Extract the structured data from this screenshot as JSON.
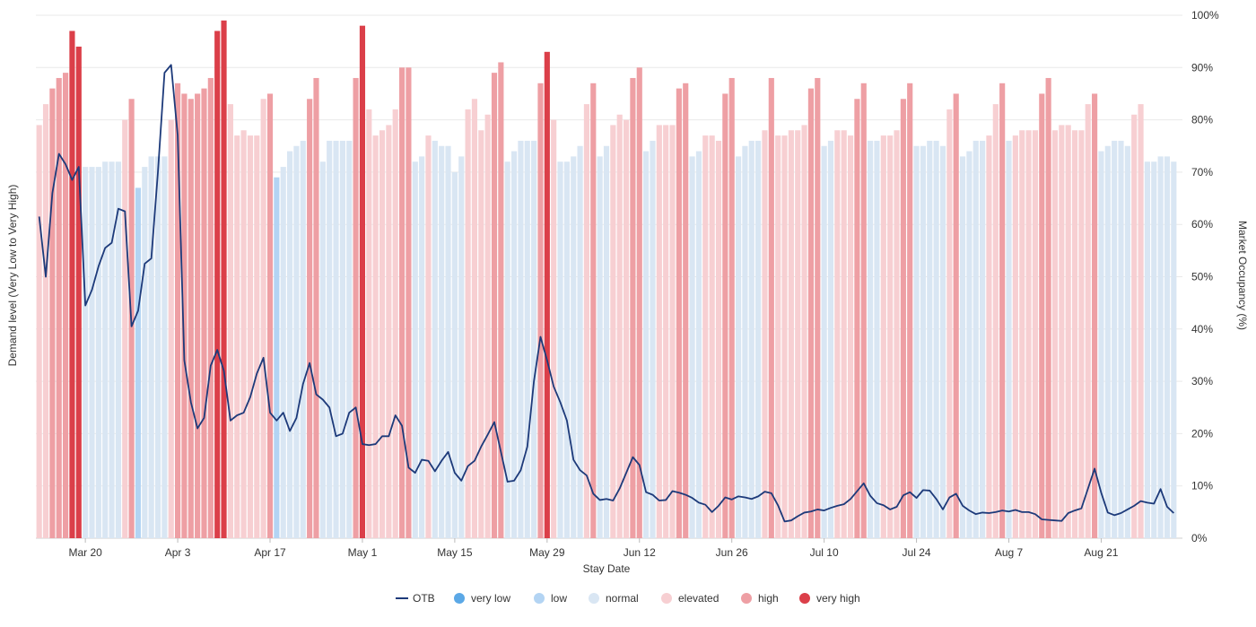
{
  "chart_data": {
    "type": "bar",
    "title": "",
    "xlabel": "Stay Date",
    "ylabel_left": "Demand level (Very Low to Very High)",
    "ylabel_right": "Market Occupancy (%)",
    "ylim": [
      0,
      100
    ],
    "y_ticks": [
      "0%",
      "10%",
      "20%",
      "30%",
      "40%",
      "50%",
      "60%",
      "70%",
      "80%",
      "90%",
      "100%"
    ],
    "x_ticks": [
      {
        "label": "Mar 20",
        "day": 7
      },
      {
        "label": "Apr 3",
        "day": 21
      },
      {
        "label": "Apr 17",
        "day": 35
      },
      {
        "label": "May 1",
        "day": 49
      },
      {
        "label": "May 15",
        "day": 63
      },
      {
        "label": "May 29",
        "day": 77
      },
      {
        "label": "Jun 12",
        "day": 91
      },
      {
        "label": "Jun 26",
        "day": 105
      },
      {
        "label": "Jul 10",
        "day": 119
      },
      {
        "label": "Jul 24",
        "day": 133
      },
      {
        "label": "Aug 7",
        "day": 147
      },
      {
        "label": "Aug 21",
        "day": 161
      }
    ],
    "start_date": "Mar 13",
    "levels": [
      "very low",
      "low",
      "normal",
      "elevated",
      "high",
      "very high"
    ],
    "level_colors": {
      "very low": "#5ba8e6",
      "low": "#b3d4f3",
      "normal": "#d9e6f3",
      "elevated": "#f7cfd2",
      "high": "#ee9fa4",
      "very high": "#db3f49"
    },
    "line_color": "#1d3a7a",
    "legend": [
      "OTB",
      "very low",
      "low",
      "normal",
      "elevated",
      "high",
      "very high"
    ],
    "series": [
      {
        "name": "Market Occupancy (bars)",
        "values": [
          79,
          83,
          86,
          88,
          89,
          97,
          94,
          71,
          71,
          71,
          72,
          72,
          72,
          80,
          84,
          67,
          71,
          73,
          73,
          73,
          80,
          87,
          85,
          84,
          85,
          86,
          88,
          97,
          99,
          83,
          77,
          78,
          77,
          77,
          84,
          85,
          69,
          71,
          74,
          75,
          76,
          84,
          88,
          72,
          76,
          76,
          76,
          76,
          88,
          98,
          82,
          77,
          78,
          79,
          82,
          90,
          90,
          72,
          73,
          77,
          76,
          75,
          75,
          70,
          73,
          82,
          84,
          78,
          81,
          89,
          91,
          72,
          74,
          76,
          76,
          76,
          87,
          93,
          80,
          72,
          72,
          73,
          75,
          83,
          87,
          73,
          75,
          79,
          81,
          80,
          88,
          90,
          74,
          76,
          79,
          79,
          79,
          86,
          87,
          73,
          74,
          77,
          77,
          76,
          85,
          88,
          73,
          75,
          76,
          76,
          78,
          88,
          77,
          77,
          78,
          78,
          79,
          86,
          88,
          75,
          76,
          78,
          78,
          77,
          84,
          87,
          76,
          76,
          77,
          77,
          78,
          84,
          87,
          75,
          75,
          76,
          76,
          75,
          82,
          85,
          73,
          74,
          76,
          76,
          77,
          83,
          87,
          76,
          77,
          78,
          78,
          78,
          85,
          88,
          78,
          79,
          79,
          78,
          78,
          83,
          85,
          74,
          75,
          76,
          76,
          75,
          81,
          83,
          72,
          72,
          73,
          73,
          72
        ],
        "levels": [
          3,
          3,
          4,
          4,
          4,
          5,
          5,
          2,
          2,
          2,
          2,
          2,
          2,
          3,
          4,
          1,
          2,
          2,
          2,
          2,
          3,
          4,
          4,
          4,
          4,
          4,
          4,
          5,
          5,
          3,
          3,
          3,
          3,
          3,
          3,
          4,
          1,
          2,
          2,
          2,
          2,
          4,
          4,
          2,
          2,
          2,
          2,
          2,
          4,
          5,
          3,
          3,
          3,
          3,
          3,
          4,
          4,
          2,
          2,
          3,
          2,
          2,
          2,
          2,
          2,
          3,
          3,
          3,
          3,
          4,
          4,
          2,
          2,
          2,
          2,
          2,
          4,
          5,
          3,
          2,
          2,
          2,
          2,
          3,
          4,
          2,
          2,
          3,
          3,
          3,
          4,
          4,
          2,
          2,
          3,
          3,
          3,
          4,
          4,
          2,
          2,
          3,
          3,
          3,
          4,
          4,
          2,
          2,
          2,
          2,
          3,
          4,
          3,
          3,
          3,
          3,
          3,
          4,
          4,
          2,
          2,
          3,
          3,
          3,
          4,
          4,
          2,
          2,
          3,
          3,
          3,
          4,
          4,
          2,
          2,
          2,
          2,
          2,
          3,
          4,
          2,
          2,
          2,
          2,
          3,
          3,
          4,
          2,
          3,
          3,
          3,
          3,
          4,
          4,
          3,
          3,
          3,
          3,
          3,
          3,
          4,
          2,
          2,
          2,
          2,
          2,
          3,
          3,
          2,
          2,
          2,
          2,
          2
        ]
      },
      {
        "name": "OTB",
        "values": [
          61.5,
          50,
          66,
          73.5,
          71.5,
          68.5,
          71,
          44.5,
          47.5,
          52,
          55.5,
          56.5,
          63,
          62.5,
          40.5,
          43.5,
          52.5,
          53.5,
          70,
          89,
          90.5,
          77,
          34,
          26,
          21,
          23,
          33,
          36,
          32,
          22.5,
          23.5,
          24,
          27,
          31.5,
          34.5,
          24,
          22.5,
          24,
          20.5,
          23,
          29.5,
          33.5,
          27.5,
          26.5,
          25,
          19.5,
          20,
          24,
          25,
          18,
          17.8,
          18,
          19.5,
          19.5,
          23.5,
          21.5,
          13.5,
          12.5,
          15,
          14.8,
          12.8,
          14.8,
          16.5,
          12.5,
          11,
          13.8,
          14.8,
          17.5,
          19.8,
          22.2,
          16.5,
          10.8,
          11,
          13,
          17.5,
          30,
          38.5,
          34,
          29,
          26,
          22.5,
          15,
          13,
          12,
          8.5,
          7.3,
          7.5,
          7.2,
          9.5,
          12.5,
          15.5,
          14,
          8.8,
          8.3,
          7.2,
          7.3,
          9,
          8.7,
          8.3,
          7.7,
          6.8,
          6.4,
          5,
          6.2,
          7.8,
          7.4,
          8,
          7.8,
          7.5,
          8,
          8.9,
          8.6,
          6.3,
          3.2,
          3.4,
          4.2,
          4.9,
          5.1,
          5.5,
          5.3,
          5.8,
          6.2,
          6.5,
          7.5,
          9,
          10.5,
          8.1,
          6.7,
          6.3,
          5.5,
          6,
          8.2,
          8.8,
          7.7,
          9.2,
          9.1,
          7.5,
          5.5,
          7.8,
          8.5,
          6.2,
          5.3,
          4.6,
          4.9,
          4.8,
          5,
          5.3,
          5.1,
          5.4,
          5,
          5,
          4.6,
          3.6,
          3.5,
          3.4,
          3.3,
          4.8,
          5.3,
          5.7,
          9.5,
          13.3,
          8.7,
          4.9,
          4.4,
          4.8,
          5.5,
          6.2,
          7.1,
          6.8,
          6.6,
          9.4,
          6,
          4.8
        ]
      }
    ]
  }
}
